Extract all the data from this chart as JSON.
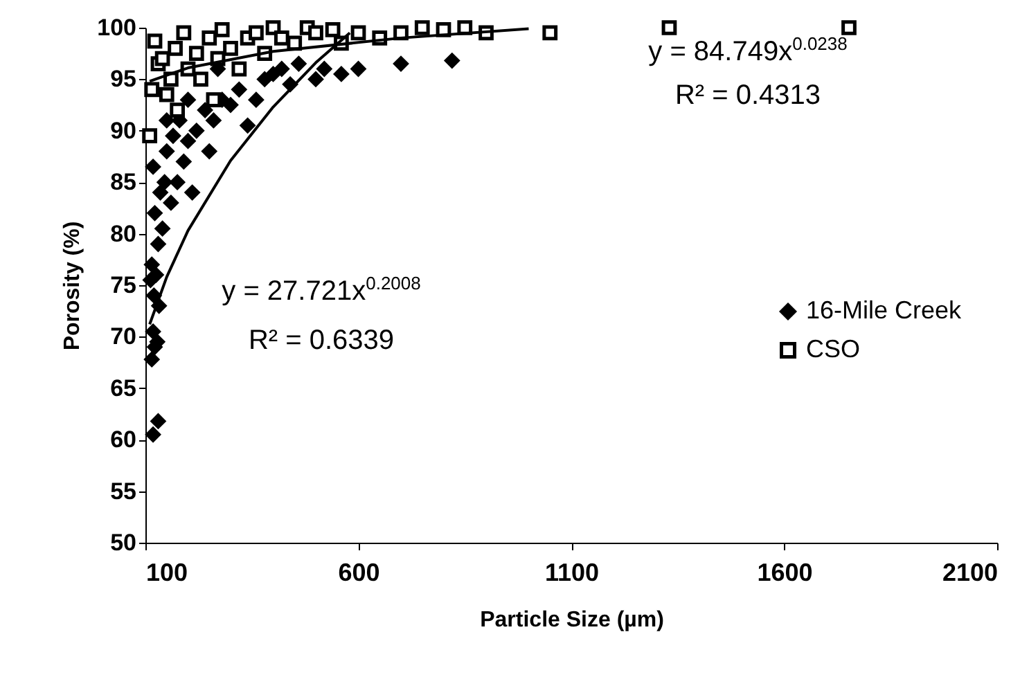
{
  "chart_data": {
    "type": "scatter",
    "xlabel": "Particle Size (µm)",
    "ylabel": "Porosity (%)",
    "xlim": [
      100,
      2100
    ],
    "xticks": [
      100,
      600,
      1100,
      1600,
      2100
    ],
    "ylim": [
      50,
      100
    ],
    "yticks": [
      50,
      55,
      60,
      65,
      70,
      75,
      80,
      85,
      90,
      95,
      100
    ],
    "grid": false,
    "legend": "right",
    "annotations": [
      "y = 84.749x$^{0.0238}$",
      "R² = 0.4313",
      "y = 27.721x$^{0.2008}$",
      "R² = 0.6339"
    ],
    "series": [
      {
        "name": "16-Mile Creek",
        "color": "#000000",
        "marker": "diamond",
        "x": [
          118,
          130,
          115,
          122,
          118,
          128,
          112,
          120,
          125,
          132,
          115,
          130,
          140,
          122,
          135,
          118,
          145,
          150,
          160,
          175,
          165,
          190,
          200,
          210,
          180,
          220,
          240,
          250,
          260,
          280,
          300,
          320,
          340,
          360,
          380,
          400,
          420,
          440,
          460,
          500,
          520,
          560,
          600,
          700,
          820,
          150,
          200,
          270
        ],
        "values": [
          60.5,
          61.8,
          67.8,
          69,
          70.5,
          69.5,
          75.5,
          74,
          76,
          73,
          77,
          79,
          80.5,
          82,
          84,
          86.5,
          85,
          88,
          83,
          85,
          89.5,
          87,
          89,
          84,
          91,
          90,
          92,
          88,
          91,
          93,
          92.5,
          94,
          90.5,
          93,
          95,
          95.5,
          96,
          94.5,
          96.5,
          95,
          96,
          95.5,
          96,
          96.5,
          96.8,
          91,
          93,
          96
        ]
      },
      {
        "name": "CSO",
        "color": "#000000",
        "marker": "square",
        "x": [
          110,
          115,
          122,
          130,
          140,
          150,
          160,
          170,
          175,
          190,
          200,
          220,
          230,
          250,
          260,
          270,
          280,
          300,
          320,
          340,
          360,
          380,
          400,
          420,
          450,
          480,
          500,
          540,
          560,
          600,
          650,
          700,
          750,
          800,
          850,
          900,
          1050,
          1330,
          1752
        ],
        "values": [
          89.5,
          94,
          98.7,
          96.5,
          97,
          93.5,
          95,
          98,
          92,
          99.5,
          96,
          97.5,
          95,
          99,
          93,
          97,
          99.8,
          98,
          96,
          99,
          99.5,
          97.5,
          100,
          99,
          98.5,
          100,
          99.5,
          99.8,
          98.5,
          99.5,
          99,
          99.5,
          100,
          99.8,
          100,
          99.5,
          99.5,
          100,
          100
        ]
      },
      {
        "type": "line",
        "color": "#000000",
        "marker": "none",
        "x": [
          110,
          150,
          200,
          300,
          400,
          500,
          580
        ],
        "values": [
          71.2,
          75.8,
          80.3,
          87.1,
          92.3,
          96.6,
          99.5
        ]
      },
      {
        "type": "line",
        "color": "#000000",
        "marker": "none",
        "x": [
          110,
          200,
          400,
          700,
          1000
        ],
        "values": [
          94.8,
          96.1,
          97.7,
          99.0,
          99.9
        ]
      }
    ]
  }
}
